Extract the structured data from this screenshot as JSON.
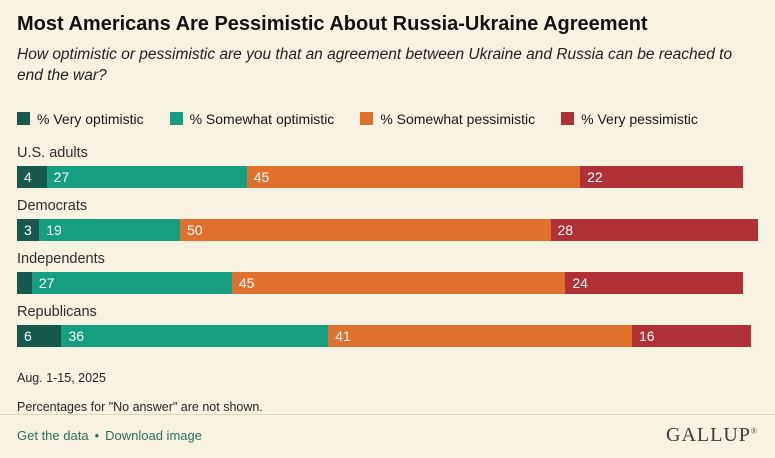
{
  "header": {
    "title": "Most Americans Are Pessimistic About Russia-Ukraine Agreement",
    "subtitle": "How optimistic or pessimistic are you that an agreement between Ukraine and Russia can be reached to end the war?"
  },
  "legend": [
    {
      "label": "% Very optimistic",
      "color": "#155a4c"
    },
    {
      "label": "% Somewhat optimistic",
      "color": "#169e80"
    },
    {
      "label": "% Somewhat pessimistic",
      "color": "#e0702e"
    },
    {
      "label": "% Very pessimistic",
      "color": "#b03038"
    }
  ],
  "chart_data": {
    "type": "bar",
    "orientation": "horizontal-stacked",
    "title": "Most Americans Are Pessimistic About Russia-Ukraine Agreement",
    "question": "How optimistic or pessimistic are you that an agreement between Ukraine and Russia can be reached to end the war?",
    "categories": [
      "U.S. adults",
      "Democrats",
      "Independents",
      "Republicans"
    ],
    "series": [
      {
        "name": "% Very optimistic",
        "color": "#155a4c",
        "values": [
          4,
          3,
          2,
          6
        ],
        "labels": [
          "4",
          "3",
          "",
          "6"
        ]
      },
      {
        "name": "% Somewhat optimistic",
        "color": "#169e80",
        "values": [
          27,
          19,
          27,
          36
        ],
        "labels": [
          "27",
          "19",
          "27",
          "36"
        ]
      },
      {
        "name": "% Somewhat pessimistic",
        "color": "#e0702e",
        "values": [
          45,
          50,
          45,
          41
        ],
        "labels": [
          "45",
          "50",
          "45",
          "41"
        ]
      },
      {
        "name": "% Very pessimistic",
        "color": "#b03038",
        "values": [
          22,
          28,
          24,
          16
        ],
        "labels": [
          "22",
          "28",
          "24",
          "16"
        ]
      }
    ],
    "xlim": [
      0,
      100
    ],
    "value_unit": "%",
    "legend_position": "top",
    "grid": false
  },
  "footnotes": {
    "dates": "Aug. 1-15, 2025",
    "note": "Percentages for \"No answer\" are not shown."
  },
  "footer": {
    "links": [
      "Get the data",
      "Download image"
    ],
    "separator": "•",
    "brand": "GALLUP",
    "brand_mark": "®"
  }
}
